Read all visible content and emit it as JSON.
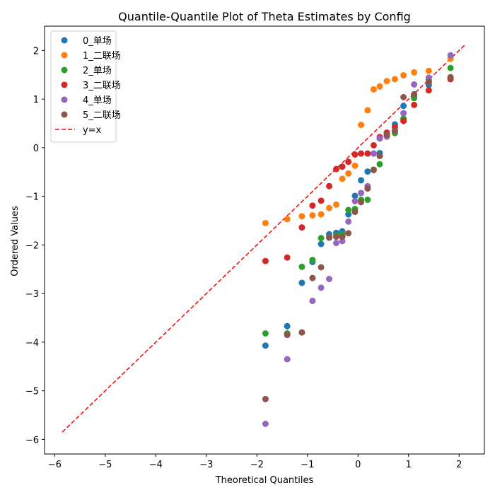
{
  "chart_data": {
    "type": "scatter",
    "title": "Quantile-Quantile Plot of Theta Estimates by Config",
    "xlabel": "Theoretical Quantiles",
    "ylabel": "Ordered Values",
    "xlim": [
      -6.2,
      2.5
    ],
    "ylim": [
      -6.3,
      2.5
    ],
    "xticks": [
      -6,
      -5,
      -4,
      -3,
      -2,
      -1,
      0,
      1,
      2
    ],
    "yticks": [
      -6,
      -5,
      -4,
      -3,
      -2,
      -1,
      0,
      1,
      2
    ],
    "grid": false,
    "legend_position": "top-left",
    "x": [
      -1.83,
      -1.4,
      -1.11,
      -0.9,
      -0.73,
      -0.57,
      -0.43,
      -0.31,
      -0.19,
      -0.06,
      0.06,
      0.19,
      0.31,
      0.43,
      0.57,
      0.73,
      0.9,
      1.11,
      1.4,
      1.83
    ],
    "series": [
      {
        "name": "0_单场",
        "color": "#1f77b4",
        "values": [
          -4.07,
          -3.67,
          -2.78,
          -2.35,
          -1.98,
          -1.78,
          -1.75,
          -1.72,
          -1.37,
          -0.99,
          -0.67,
          -0.49,
          -0.12,
          -0.11,
          0.23,
          0.48,
          0.86,
          1.08,
          1.29,
          1.44
        ]
      },
      {
        "name": "1_二联场",
        "color": "#ff7f0e",
        "values": [
          -1.55,
          -1.47,
          -1.41,
          -1.39,
          -1.37,
          -1.24,
          -1.17,
          -0.64,
          -0.53,
          -0.37,
          0.47,
          0.77,
          1.2,
          1.26,
          1.37,
          1.41,
          1.49,
          1.55,
          1.58,
          1.83
        ]
      },
      {
        "name": "2_单场",
        "color": "#2ca02c",
        "values": [
          -3.82,
          -3.82,
          -2.45,
          -2.31,
          -1.86,
          -1.84,
          -1.81,
          -1.78,
          -1.28,
          -1.26,
          -1.07,
          -1.07,
          -0.45,
          -0.34,
          0.25,
          0.3,
          0.6,
          1.02,
          1.39,
          1.64
        ]
      },
      {
        "name": "3_二联场",
        "color": "#d62728",
        "values": [
          -2.33,
          -2.26,
          -1.64,
          -1.19,
          -1.09,
          -0.79,
          -0.44,
          -0.39,
          -0.29,
          -0.14,
          -0.12,
          -0.12,
          0.05,
          0.22,
          0.31,
          0.42,
          0.55,
          0.88,
          1.18,
          1.41
        ]
      },
      {
        "name": "4_单场",
        "color": "#9467bd",
        "values": [
          -5.68,
          -4.35,
          -3.8,
          -3.15,
          -2.88,
          -2.7,
          -1.96,
          -1.92,
          -1.52,
          -1.1,
          -0.93,
          -0.79,
          -0.12,
          0.19,
          0.23,
          0.34,
          0.71,
          1.3,
          1.44,
          1.9
        ]
      },
      {
        "name": "5_二联场",
        "color": "#8c564b",
        "values": [
          -5.17,
          -3.85,
          -3.8,
          -2.68,
          -2.46,
          -1.85,
          -1.83,
          -1.83,
          -1.76,
          -1.32,
          -1.12,
          -0.84,
          -0.46,
          -0.17,
          0.27,
          0.35,
          1.04,
          1.1,
          1.35,
          1.45
        ]
      }
    ],
    "reference_line": {
      "name": "y=x",
      "color": "#ff0000",
      "from": -5.85,
      "to": 2.12
    }
  }
}
